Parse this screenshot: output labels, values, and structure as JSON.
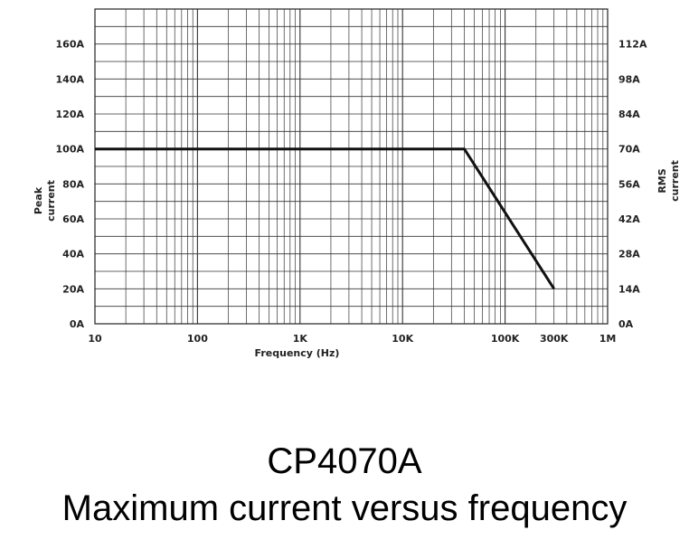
{
  "chart_data": {
    "type": "line",
    "xlabel": "Frequency (Hz)",
    "ylabel": "Peak current",
    "y2label": "RMS current",
    "xscale": "log",
    "xlim": [
      10,
      1000000
    ],
    "ylim": [
      0,
      180
    ],
    "y2lim": [
      0,
      126
    ],
    "x_ticks": [
      {
        "value": 10,
        "label": "10"
      },
      {
        "value": 100,
        "label": "100"
      },
      {
        "value": 1000,
        "label": "1K"
      },
      {
        "value": 10000,
        "label": "10K"
      },
      {
        "value": 100000,
        "label": "100K"
      },
      {
        "value": 300000,
        "label": "300K"
      },
      {
        "value": 1000000,
        "label": "1M"
      }
    ],
    "y_ticks": [
      {
        "value": 0,
        "label": "0A"
      },
      {
        "value": 20,
        "label": "20A"
      },
      {
        "value": 40,
        "label": "40A"
      },
      {
        "value": 60,
        "label": "60A"
      },
      {
        "value": 80,
        "label": "80A"
      },
      {
        "value": 100,
        "label": "100A"
      },
      {
        "value": 120,
        "label": "120A"
      },
      {
        "value": 140,
        "label": "140A"
      },
      {
        "value": 160,
        "label": "160A"
      }
    ],
    "y2_ticks": [
      {
        "value": 0,
        "label": "0A"
      },
      {
        "value": 14,
        "label": "14A"
      },
      {
        "value": 28,
        "label": "28A"
      },
      {
        "value": 42,
        "label": "42A"
      },
      {
        "value": 56,
        "label": "56A"
      },
      {
        "value": 70,
        "label": "70A"
      },
      {
        "value": 84,
        "label": "84A"
      },
      {
        "value": 98,
        "label": "98A"
      },
      {
        "value": 112,
        "label": "112A"
      }
    ],
    "grid": true,
    "series": [
      {
        "x": [
          10,
          40000,
          300000
        ],
        "y": [
          100,
          100,
          20
        ]
      }
    ]
  },
  "caption": {
    "title": "CP4070A",
    "subtitle": "Maximum current versus frequency"
  },
  "colors": {
    "line": "#111111",
    "grid": "#333333",
    "text": "#222222"
  }
}
